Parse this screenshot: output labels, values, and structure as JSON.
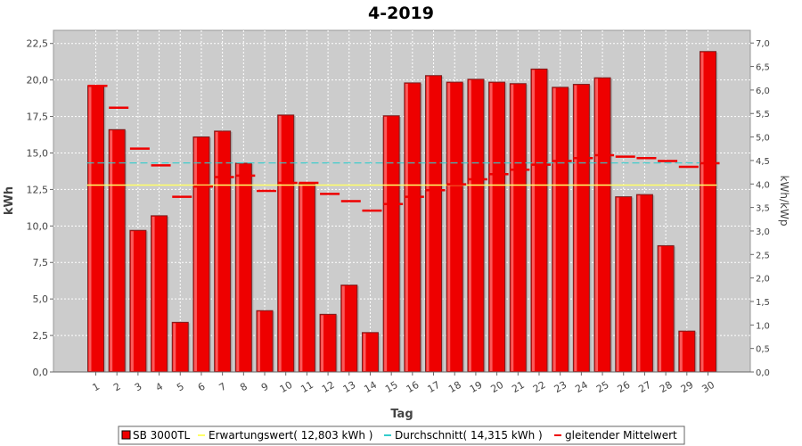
{
  "chart_data": {
    "type": "bar",
    "title": "4-2019",
    "xlabel": "Tag",
    "ylabel": "kWh",
    "y2label": "kWh/kWp",
    "ylim": [
      0,
      23.4
    ],
    "y2lim": [
      0,
      7.27
    ],
    "grid": true,
    "legend_position": "bottom",
    "yticks": [
      "0,0",
      "2,5",
      "5,0",
      "7,5",
      "10,0",
      "12,5",
      "15,0",
      "17,5",
      "20,0",
      "22,5"
    ],
    "y2ticks": [
      "0,0",
      "0,5",
      "1,0",
      "1,5",
      "2,0",
      "2,5",
      "3,0",
      "3,5",
      "4,0",
      "4,5",
      "5,0",
      "5,5",
      "6,0",
      "6,5",
      "7,0"
    ],
    "categories": [
      "1",
      "2",
      "3",
      "4",
      "5",
      "6",
      "7",
      "8",
      "9",
      "10",
      "11",
      "12",
      "13",
      "14",
      "15",
      "16",
      "17",
      "18",
      "19",
      "20",
      "21",
      "22",
      "23",
      "24",
      "25",
      "26",
      "27",
      "28",
      "29",
      "30"
    ],
    "series": [
      {
        "name": "SB 3000TL",
        "kind": "bar",
        "color": "#ee0000",
        "values": [
          19.6,
          16.6,
          9.7,
          10.7,
          3.4,
          16.1,
          16.5,
          14.3,
          4.2,
          17.6,
          12.9,
          3.95,
          5.95,
          2.7,
          17.55,
          19.8,
          20.3,
          19.85,
          20.05,
          19.85,
          19.75,
          20.75,
          19.5,
          19.7,
          20.15,
          12.0,
          12.15,
          8.65,
          2.8,
          21.95
        ]
      },
      {
        "name": "Erwartungswert( 12,803 kWh )",
        "kind": "line",
        "color": "#ffff66",
        "value": 12.803
      },
      {
        "name": "Durchschnitt( 14,315 kWh )",
        "kind": "line",
        "color": "#33cccc",
        "value": 14.315
      },
      {
        "name": "gleitender Mittelwert",
        "kind": "step",
        "color": "#ee0000",
        "values": [
          19.6,
          18.1,
          15.3,
          14.15,
          12.0,
          12.7,
          13.35,
          13.45,
          12.4,
          12.95,
          12.95,
          12.2,
          11.7,
          11.05,
          11.5,
          12.0,
          12.45,
          12.85,
          13.2,
          13.55,
          13.85,
          14.2,
          14.45,
          14.65,
          14.85,
          14.75,
          14.65,
          14.45,
          14.05,
          14.3
        ]
      }
    ]
  }
}
